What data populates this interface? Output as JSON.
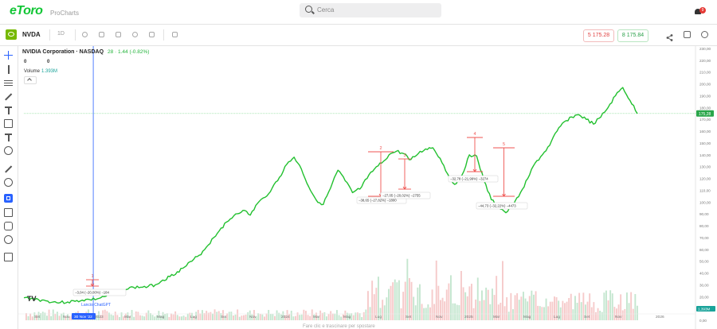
{
  "header": {
    "logo": "eToro",
    "logo_sub": "ProCharts",
    "search_placeholder": "Cerca",
    "notification_count": "9"
  },
  "toolbar": {
    "symbol": "NVDA",
    "interval": "1D",
    "sell_price": "5 175.28",
    "buy_price": "8 175.84"
  },
  "legend": {
    "title": "NVIDIA Corporation · NASDAQ",
    "price_change": "28 · 1.44 (-0.82%)",
    "zero_a": "0",
    "zero_b": "0",
    "volume_label": "Volume",
    "volume_value": "1.393M"
  },
  "chart_data": {
    "type": "line",
    "series": [
      {
        "values": [
          19,
          18.5,
          17.5,
          16.5,
          15.5,
          15,
          15.5,
          16,
          17,
          17.5,
          18,
          20,
          22,
          24.5,
          26,
          28,
          28,
          28.5,
          30,
          34,
          37,
          41,
          45,
          50,
          55,
          62,
          70,
          78,
          84,
          90,
          93,
          89,
          99,
          104,
          112,
          121,
          132,
          138,
          128,
          113,
          102,
          98,
          112,
          127,
          118,
          108,
          111,
          120,
          128,
          133,
          140,
          143,
          141,
          136,
          141,
          145,
          146,
          137,
          124,
          115,
          123,
          140,
          139,
          118,
          102,
          96,
          91,
          97,
          108,
          120,
          133,
          140,
          148,
          160,
          168,
          172,
          174,
          170,
          166,
          172,
          180,
          190,
          197,
          186,
          175
        ],
        "color": "#22c02f"
      }
    ],
    "x_tick_labels": [
      "Set",
      "Nov",
      "30 Nov '22",
      "2023",
      "Mar",
      "Mag",
      "Lug",
      "Set",
      "Nov",
      "2024",
      "Mar",
      "Mag",
      "Lug",
      "Set",
      "Nov",
      "2025",
      "Mar",
      "Mag",
      "Lug",
      "Set",
      "Nov",
      "2026"
    ],
    "y_tick_labels": [
      "230,00",
      "220,00",
      "210,00",
      "200,00",
      "190,00",
      "180,00",
      "170,00",
      "160,00",
      "150,00",
      "140,00",
      "130,00",
      "120,00",
      "110,00",
      "100,00",
      "90,00",
      "80,00",
      "70,00",
      "60,00",
      "50,00",
      "40,00",
      "30,00",
      "20,00",
      "10,00",
      "0,00"
    ],
    "ylim": [
      0,
      230
    ],
    "current_price_label": "175,28",
    "volume_label_right": "1,393M",
    "annotations": [
      {
        "number": "1",
        "text": "−3,04 (−20,00%) −184"
      },
      {
        "number": "2",
        "text": "−38,65 (−27,82%) −1800"
      },
      {
        "number": "3",
        "text": "−27,05 (−20,02%) −2755"
      },
      {
        "number": "4",
        "text": "−32,78 (−21,99%) −3274"
      },
      {
        "number": "5",
        "text": "−44,73 (−32,22%) −4473"
      }
    ],
    "event_label": "Lancio ChatGPT",
    "event_date_label": "30 Nov '22"
  },
  "footer_hint": "Fare clic e trascinare per spostare",
  "tradingview_logo": "TV"
}
